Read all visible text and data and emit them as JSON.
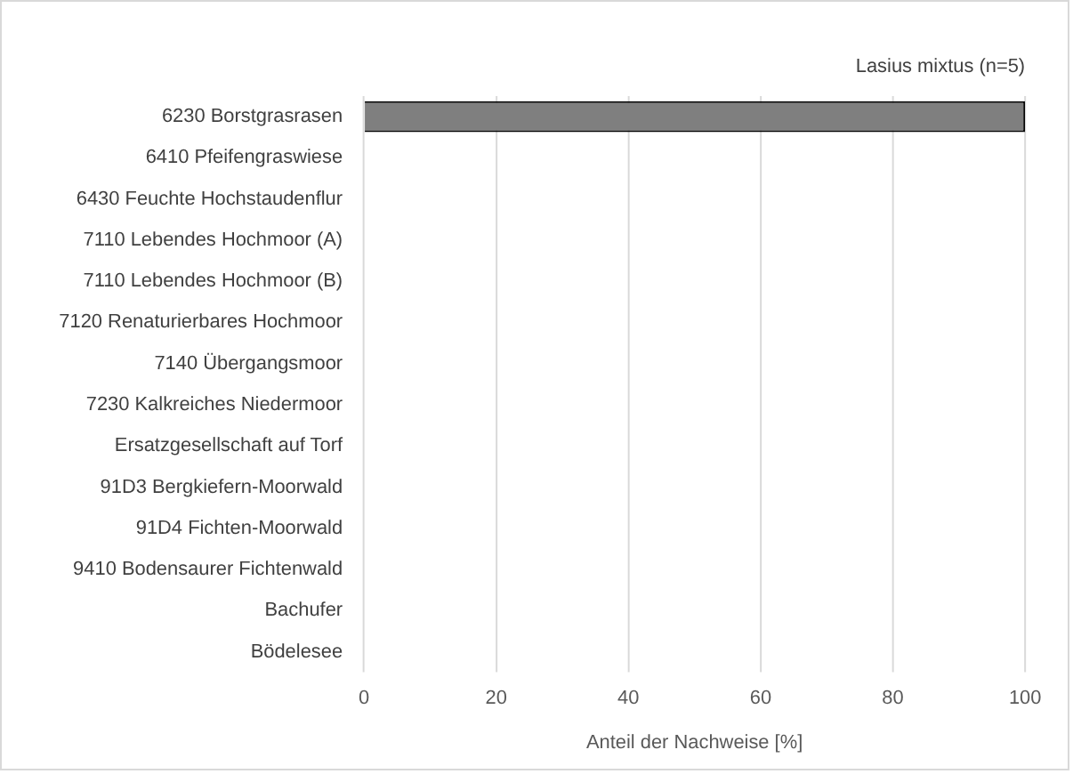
{
  "chart_data": {
    "type": "bar",
    "orientation": "horizontal",
    "title": "Lasius mixtus (n=5)",
    "xlabel": "Anteil der Nachweise [%]",
    "categories": [
      "6230 Borstgrasrasen",
      "6410 Pfeifengraswiese",
      "6430 Feuchte Hochstaudenflur",
      "7110 Lebendes Hochmoor (A)",
      "7110 Lebendes Hochmoor (B)",
      "7120 Renaturierbares Hochmoor",
      "7140 Übergangsmoor",
      "7230 Kalkreiches Niedermoor",
      "Ersatzgesellschaft auf Torf",
      "91D3 Bergkiefern-Moorwald",
      "91D4 Fichten-Moorwald",
      "9410 Bodensaurer Fichtenwald",
      "Bachufer",
      "Bödelesee"
    ],
    "values": [
      100,
      0,
      0,
      0,
      0,
      0,
      0,
      0,
      0,
      0,
      0,
      0,
      0,
      0
    ],
    "color": "#7f7f7f",
    "xlim": [
      0,
      100
    ],
    "xticks": [
      0,
      20,
      40,
      60,
      80,
      100
    ],
    "grid": "x",
    "legend": false
  }
}
